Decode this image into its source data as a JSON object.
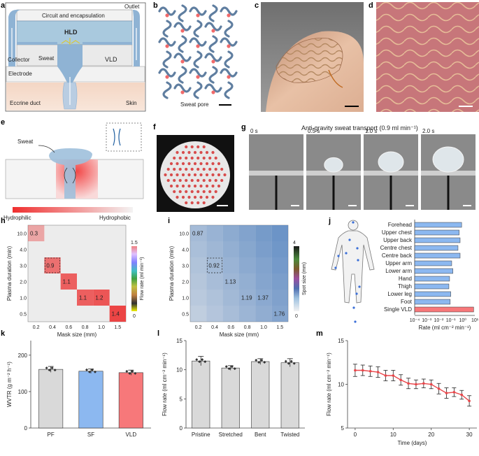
{
  "panels": {
    "a": {
      "letter": "a",
      "labels": [
        "Circuit and encapsulation",
        "HLD",
        "Outlet",
        "Collector",
        "Sweat",
        "VLD",
        "Electrode",
        "Eccrine duct",
        "Skin"
      ]
    },
    "b": {
      "letter": "b",
      "label": "Sweat pore"
    },
    "c": {
      "letter": "c"
    },
    "d": {
      "letter": "d"
    },
    "e": {
      "letter": "e",
      "sweat": "Sweat",
      "hydrophilic": "Hydrophilic",
      "hydrophobic": "Hydrophobic"
    },
    "f": {
      "letter": "f"
    },
    "g": {
      "letter": "g",
      "title": "Anti-gravity sweat transport (0.9 ml min⁻¹)",
      "times": [
        "0 s",
        "0.5 s",
        "1.0 s",
        "2.0 s"
      ],
      "droplet_sizes": [
        0,
        0.45,
        0.75,
        1.0
      ]
    },
    "h": {
      "letter": "h"
    },
    "i": {
      "letter": "i"
    },
    "j": {
      "letter": "j"
    },
    "k": {
      "letter": "k"
    },
    "l": {
      "letter": "l"
    },
    "m": {
      "letter": "m"
    }
  },
  "colors": {
    "device_blue": "#8fb3d4",
    "hld_blue": "#a9c9de",
    "skin": "#f6dccb",
    "bar_gray": "#d9d9d9",
    "bar_blue": "#8cb8f0",
    "bar_red": "#f7787a",
    "line_red": "#e8464a",
    "pore_red": "#f06a6a"
  },
  "chart_data": [
    {
      "id": "h",
      "type": "heatmap",
      "xlabel": "Mask size (mm)",
      "ylabel": "Plasma duration (min)",
      "x_categories": [
        "0.2",
        "0.4",
        "0.6",
        "0.8",
        "1.0",
        "1.5"
      ],
      "y_categories": [
        "10.0",
        "4.0",
        "3.0",
        "2.0",
        "1.0",
        "0.5"
      ],
      "cells": [
        {
          "x": "0.2",
          "y": "10.0",
          "value": 0.3
        },
        {
          "x": "0.4",
          "y": "3.0",
          "value": 0.9,
          "highlight": true
        },
        {
          "x": "0.6",
          "y": "2.0",
          "value": 1.1
        },
        {
          "x": "0.8",
          "y": "1.0",
          "value": 1.1
        },
        {
          "x": "1.0",
          "y": "1.0",
          "value": 1.2
        },
        {
          "x": "1.5",
          "y": "0.5",
          "value": 1.4
        }
      ],
      "colorbar": {
        "label": "Flow rate (ml min⁻¹)",
        "min": "0",
        "max": "1.5"
      }
    },
    {
      "id": "i",
      "type": "heatmap",
      "xlabel": "Mask size (mm)",
      "ylabel": "Plasma duration (min)",
      "x_categories": [
        "0.2",
        "0.4",
        "0.6",
        "0.8",
        "1.0",
        "1.5"
      ],
      "y_categories": [
        "10.0",
        "4.0",
        "3.0",
        "2.0",
        "1.0",
        "0.5"
      ],
      "labeled_cells": [
        {
          "x": "0.2",
          "y": "10.0",
          "value": 0.87
        },
        {
          "x": "0.4",
          "y": "3.0",
          "value": 0.92,
          "highlight": true
        },
        {
          "x": "0.6",
          "y": "2.0",
          "value": 1.13
        },
        {
          "x": "0.8",
          "y": "1.0",
          "value": 1.19
        },
        {
          "x": "1.0",
          "y": "1.0",
          "value": 1.37
        },
        {
          "x": "1.5",
          "y": "0.5",
          "value": 1.76
        }
      ],
      "colorbar": {
        "label": "Spot size (mm)",
        "min": "0",
        "max": "4"
      }
    },
    {
      "id": "j",
      "type": "bar",
      "orientation": "horizontal",
      "categories": [
        "Forehead",
        "Upper chest",
        "Upper back",
        "Centre chest",
        "Centre back",
        "Upper arm",
        "Lower arm",
        "Hand",
        "Thigh",
        "Lower leg",
        "Foot",
        "Single VLD"
      ],
      "values": [
        0.8,
        0.5,
        0.6,
        0.4,
        0.6,
        0.12,
        0.15,
        0.08,
        0.07,
        0.1,
        0.09,
        8
      ],
      "xlabel": "Rate (ml cm⁻² min⁻¹)",
      "xscale": "log",
      "xticks": [
        "10⁻⁴",
        "10⁻³",
        "10⁻²",
        "10⁻¹",
        "10⁰",
        "10¹"
      ]
    },
    {
      "id": "k",
      "type": "bar",
      "categories": [
        "PF",
        "SF",
        "VLD"
      ],
      "values": [
        161,
        156,
        152
      ],
      "errors": [
        8,
        6,
        7
      ],
      "ylabel": "WVTR (g m⁻² h⁻¹)",
      "ylim": [
        0,
        240
      ],
      "yticks": [
        "0",
        "100",
        "200"
      ]
    },
    {
      "id": "l",
      "type": "bar",
      "categories": [
        "Pristine",
        "Stretched",
        "Bent",
        "Twisted"
      ],
      "values": [
        11.5,
        10.3,
        11.4,
        11.2
      ],
      "errors": [
        0.8,
        0.4,
        0.5,
        0.7
      ],
      "ylabel": "Flow rate (ml cm⁻² min⁻¹)",
      "ylim": [
        0,
        15
      ],
      "yticks": [
        "0",
        "5",
        "10",
        "15"
      ]
    },
    {
      "id": "m",
      "type": "line",
      "x": [
        0,
        2,
        4,
        6,
        8,
        10,
        12,
        14,
        16,
        18,
        20,
        22,
        24,
        26,
        28,
        30
      ],
      "y": [
        11.6,
        11.6,
        11.5,
        11.4,
        11.0,
        11.0,
        10.5,
        10.1,
        10.0,
        10.1,
        10.0,
        9.5,
        9.0,
        9.1,
        8.8,
        8.1
      ],
      "errors": [
        0.7,
        0.6,
        0.6,
        0.6,
        0.6,
        0.6,
        0.6,
        0.6,
        0.5,
        0.5,
        0.5,
        0.6,
        0.6,
        0.5,
        0.5,
        0.6
      ],
      "xlabel": "Time (days)",
      "ylabel": "Flow rate (ml cm⁻² min⁻¹)",
      "xlim": [
        -2,
        32
      ],
      "ylim": [
        5,
        15
      ],
      "xticks": [
        "0",
        "10",
        "20",
        "30"
      ],
      "yticks": [
        "5",
        "10",
        "15"
      ]
    }
  ]
}
